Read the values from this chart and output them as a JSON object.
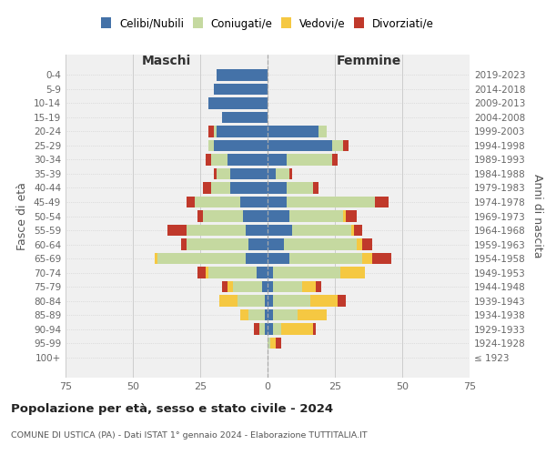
{
  "age_groups": [
    "0-4",
    "5-9",
    "10-14",
    "15-19",
    "20-24",
    "25-29",
    "30-34",
    "35-39",
    "40-44",
    "45-49",
    "50-54",
    "55-59",
    "60-64",
    "65-69",
    "70-74",
    "75-79",
    "80-84",
    "85-89",
    "90-94",
    "95-99",
    "100+"
  ],
  "birth_years": [
    "2019-2023",
    "2014-2018",
    "2009-2013",
    "2004-2008",
    "1999-2003",
    "1994-1998",
    "1989-1993",
    "1984-1988",
    "1979-1983",
    "1974-1978",
    "1969-1973",
    "1964-1968",
    "1959-1963",
    "1954-1958",
    "1949-1953",
    "1944-1948",
    "1939-1943",
    "1934-1938",
    "1929-1933",
    "1924-1928",
    "≤ 1923"
  ],
  "maschi": {
    "celibi": [
      19,
      20,
      22,
      17,
      19,
      20,
      15,
      14,
      14,
      10,
      9,
      8,
      7,
      8,
      4,
      2,
      1,
      1,
      1,
      0,
      0
    ],
    "coniugati": [
      0,
      0,
      0,
      0,
      1,
      2,
      6,
      5,
      7,
      17,
      15,
      22,
      23,
      33,
      18,
      11,
      10,
      6,
      2,
      0,
      0
    ],
    "vedove": [
      0,
      0,
      0,
      0,
      0,
      0,
      0,
      0,
      0,
      0,
      0,
      0,
      0,
      1,
      1,
      2,
      7,
      3,
      0,
      0,
      0
    ],
    "divorziate": [
      0,
      0,
      0,
      0,
      2,
      0,
      2,
      1,
      3,
      3,
      2,
      7,
      2,
      0,
      3,
      2,
      0,
      0,
      2,
      0,
      0
    ]
  },
  "femmine": {
    "nubili": [
      0,
      0,
      0,
      0,
      19,
      24,
      7,
      3,
      7,
      7,
      8,
      9,
      6,
      8,
      2,
      2,
      2,
      2,
      2,
      0,
      0
    ],
    "coniugate": [
      0,
      0,
      0,
      0,
      3,
      4,
      17,
      5,
      10,
      33,
      20,
      22,
      27,
      27,
      25,
      11,
      14,
      9,
      3,
      1,
      0
    ],
    "vedove": [
      0,
      0,
      0,
      0,
      0,
      0,
      0,
      0,
      0,
      0,
      1,
      1,
      2,
      4,
      9,
      5,
      10,
      11,
      12,
      2,
      0
    ],
    "divorziate": [
      0,
      0,
      0,
      0,
      0,
      2,
      2,
      1,
      2,
      5,
      4,
      3,
      4,
      7,
      0,
      2,
      3,
      0,
      1,
      2,
      0
    ]
  },
  "colors": {
    "celibi": "#4472a8",
    "coniugati": "#c5d9a0",
    "vedove": "#f5c842",
    "divorziate": "#c0392b"
  },
  "legend_labels": [
    "Celibi/Nubili",
    "Coniugati/e",
    "Vedovi/e",
    "Divorziati/e"
  ],
  "title1": "Popolazione per età, sesso e stato civile - 2024",
  "title2": "COMUNE DI USTICA (PA) - Dati ISTAT 1° gennaio 2024 - Elaborazione TUTTITALIA.IT",
  "header_maschi": "Maschi",
  "header_femmine": "Femmine",
  "ylabel_left": "Fasce di età",
  "ylabel_right": "Anni di nascita",
  "xlim": 75,
  "bg_color": "#ffffff",
  "plot_bg": "#f0f0f0",
  "grid_color": "#cccccc"
}
